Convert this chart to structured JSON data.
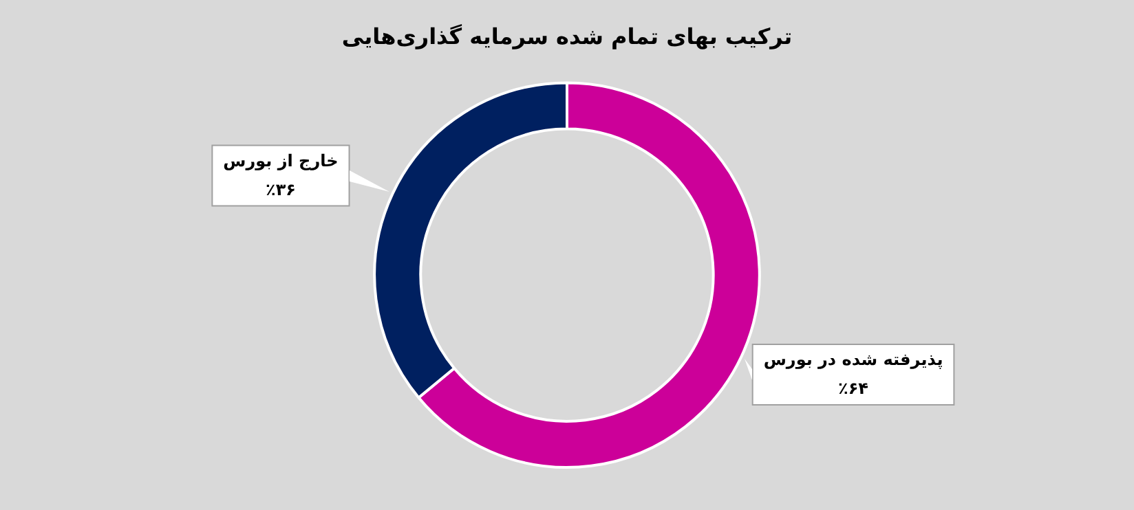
{
  "chart_data": {
    "type": "donut",
    "title": "ترکیب بهای تمام شده سرمایه گذاری‌هایی",
    "categories": [
      "پذیرفته شده در بورس",
      "خارج از بورس"
    ],
    "values": [
      64,
      36
    ],
    "colors": [
      "#cc0099",
      "#002060"
    ],
    "value_labels": [
      "٪۶۴",
      "٪۳۶"
    ],
    "legend": false
  }
}
